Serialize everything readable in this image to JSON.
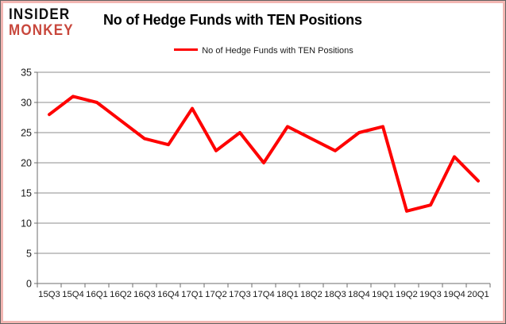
{
  "logo": {
    "line1": "INSIDER",
    "line2": "MONKEY"
  },
  "header": {
    "title": "No of Hedge Funds with TEN Positions"
  },
  "legend": {
    "label": "No of Hedge Funds with TEN Positions"
  },
  "colors": {
    "series_red": "#fe0000",
    "logo_red": "#c8473c",
    "gridline": "#8c8c8c",
    "axis": "#6e6e6e",
    "tick_label": "#1a1a1a",
    "frame_pink": "#f2b6b2"
  },
  "chart_data": {
    "type": "line",
    "title": "No of Hedge Funds with TEN Positions",
    "categories": [
      "15Q3",
      "15Q4",
      "16Q1",
      "16Q2",
      "16Q3",
      "16Q4",
      "17Q1",
      "17Q2",
      "17Q3",
      "17Q4",
      "18Q1",
      "18Q2",
      "18Q3",
      "18Q4",
      "19Q1",
      "19Q2",
      "19Q3",
      "19Q4",
      "20Q1"
    ],
    "series": [
      {
        "name": "No of Hedge Funds with TEN Positions",
        "color": "#fe0000",
        "values": [
          28,
          31,
          30,
          27,
          24,
          23,
          29,
          22,
          25,
          20,
          26,
          24,
          22,
          25,
          26,
          12,
          13,
          21,
          17
        ]
      }
    ],
    "xlabel": "",
    "ylabel": "",
    "ylim": [
      0,
      35
    ],
    "yticks": [
      0,
      5,
      10,
      15,
      20,
      25,
      30,
      35
    ],
    "grid": true,
    "legend_position": "top-center"
  }
}
